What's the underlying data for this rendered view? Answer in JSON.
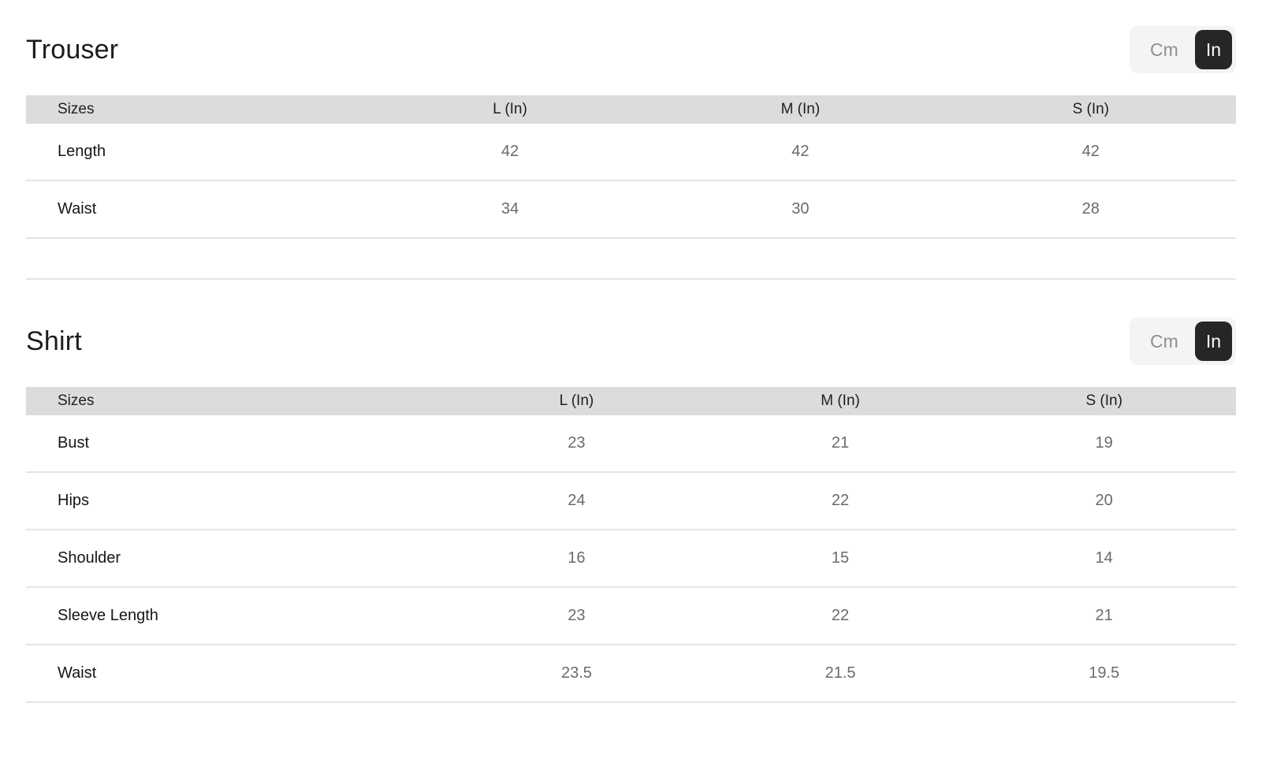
{
  "theme": {
    "header_row_bg": "#dcdcdc",
    "row_border": "#e4e4e4",
    "toggle_bg": "#f4f4f4",
    "toggle_active_bg": "#262626",
    "toggle_active_text": "#ffffff",
    "toggle_inactive_text": "#8f8f8f",
    "value_text": "#6a6a6a"
  },
  "sections": [
    {
      "title": "Trouser",
      "unit_toggle": {
        "options": [
          "Cm",
          "In"
        ],
        "selected": "In"
      },
      "table": {
        "header": [
          "Sizes",
          "L (In)",
          "M (In)",
          "S (In)"
        ],
        "rows": [
          {
            "label": "Length",
            "values": [
              "42",
              "42",
              "42"
            ]
          },
          {
            "label": "Waist",
            "values": [
              "34",
              "30",
              "28"
            ]
          },
          {
            "label": "",
            "values": [
              "",
              "",
              ""
            ]
          }
        ]
      }
    },
    {
      "title": "Shirt",
      "unit_toggle": {
        "options": [
          "Cm",
          "In"
        ],
        "selected": "In"
      },
      "table": {
        "header": [
          "Sizes",
          "L (In)",
          "M (In)",
          "S (In)"
        ],
        "rows": [
          {
            "label": "Bust",
            "values": [
              "23",
              "21",
              "19"
            ]
          },
          {
            "label": "Hips",
            "values": [
              "24",
              "22",
              "20"
            ]
          },
          {
            "label": "Shoulder",
            "values": [
              "16",
              "15",
              "14"
            ]
          },
          {
            "label": "Sleeve Length",
            "values": [
              "23",
              "22",
              "21"
            ]
          },
          {
            "label": "Waist",
            "values": [
              "23.5",
              "21.5",
              "19.5"
            ]
          }
        ]
      }
    }
  ]
}
